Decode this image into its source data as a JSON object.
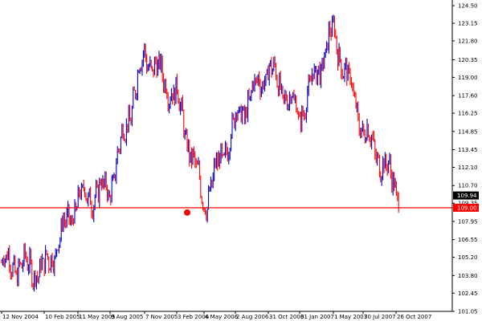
{
  "chart_data": {
    "type": "bar",
    "subtype": "ohlc",
    "title": "",
    "xlabel": "",
    "ylabel": "",
    "ylim": [
      101.05,
      124.75
    ],
    "grid": false,
    "legend": "none",
    "x_tick_labels": [
      "12 Nov 2004",
      "10 Feb 2005",
      "11 May 2005",
      "9 Aug 2005",
      "7 Nov 2005",
      "3 Feb 2006",
      "4 May 2006",
      "2 Aug 2006",
      "31 Oct 2006",
      "31 Jan 2007",
      "1 May 2007",
      "30 Jul 2007",
      "26 Oct 2007"
    ],
    "y_tick_labels": [
      "124.50",
      "123.15",
      "121.80",
      "120.35",
      "119.00",
      "117.60",
      "116.25",
      "114.85",
      "113.45",
      "112.10",
      "110.70",
      "109.35",
      "107.95",
      "106.55",
      "105.20",
      "103.80",
      "102.45",
      "101.05"
    ],
    "price_path": [
      {
        "date": "12 Nov 2004",
        "value": 104.8
      },
      {
        "date": "10 Feb 2005",
        "value": 104.2
      },
      {
        "date": "11 May 2005",
        "value": 109.6
      },
      {
        "date": "9 Aug 2005",
        "value": 110.5
      },
      {
        "date": "7 Nov 2005",
        "value": 120.8
      },
      {
        "date": "3 Feb 2006",
        "value": 117.5
      },
      {
        "date": "4 May 2006",
        "value": 109.3
      },
      {
        "date": "2 Aug 2006",
        "value": 115.6
      },
      {
        "date": "31 Oct 2006",
        "value": 119.7
      },
      {
        "date": "31 Jan 2007",
        "value": 116.1
      },
      {
        "date": "1 May 2007",
        "value": 122.5
      },
      {
        "date": "30 Jul 2007",
        "value": 115.0
      },
      {
        "date": "26 Oct 2007",
        "value": 110.6
      }
    ],
    "last_price": 109.94,
    "horizontal_line": 109.0,
    "marker": {
      "date": "4 May 2006",
      "value": 109.0
    },
    "colors": {
      "bar_up": "#0000cc",
      "bar_down": "#ff0000",
      "hline": "#ff0000",
      "marker": "#ff0000",
      "axis": "#000000",
      "price_badge_bg": "#000000",
      "price_badge_fg": "#ffffff",
      "hline_badge_bg": "#ff0000",
      "hline_badge_fg": "#ffffff"
    }
  },
  "labels": {
    "last_price": "109.94",
    "hline_price": "109.00"
  }
}
